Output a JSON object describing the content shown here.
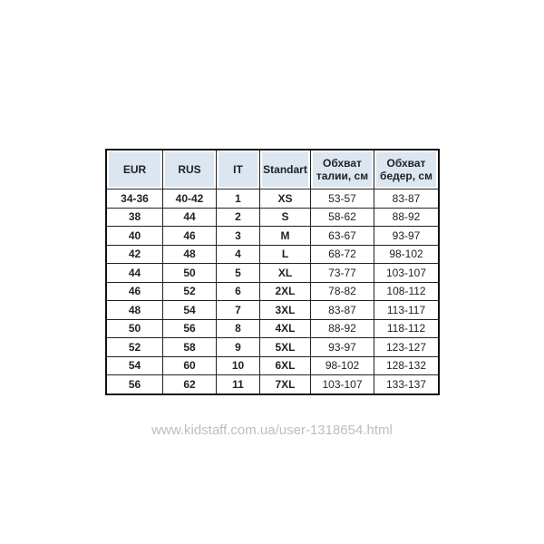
{
  "table": {
    "headers": [
      "EUR",
      "RUS",
      "IT",
      "Standart",
      "Обхват талии, см",
      "Обхват бедер, см"
    ],
    "rows": [
      [
        "34-36",
        "40-42",
        "1",
        "XS",
        "53-57",
        "83-87"
      ],
      [
        "38",
        "44",
        "2",
        "S",
        "58-62",
        "88-92"
      ],
      [
        "40",
        "46",
        "3",
        "M",
        "63-67",
        "93-97"
      ],
      [
        "42",
        "48",
        "4",
        "L",
        "68-72",
        "98-102"
      ],
      [
        "44",
        "50",
        "5",
        "XL",
        "73-77",
        "103-107"
      ],
      [
        "46",
        "52",
        "6",
        "2XL",
        "78-82",
        "108-112"
      ],
      [
        "48",
        "54",
        "7",
        "3XL",
        "83-87",
        "113-117"
      ],
      [
        "50",
        "56",
        "8",
        "4XL",
        "88-92",
        "118-112"
      ],
      [
        "52",
        "58",
        "9",
        "5XL",
        "93-97",
        "123-127"
      ],
      [
        "54",
        "60",
        "10",
        "6XL",
        "98-102",
        "128-132"
      ],
      [
        "56",
        "62",
        "11",
        "7XL",
        "103-107",
        "133-137"
      ]
    ]
  },
  "watermark": "www.kidstaff.com.ua/user-1318654.html",
  "colors": {
    "header_bg": "#dce6f1",
    "watermark": "#bdbdbd"
  }
}
